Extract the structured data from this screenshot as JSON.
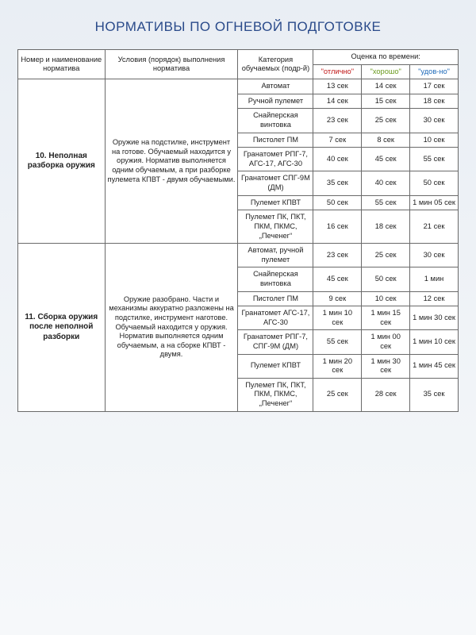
{
  "colors": {
    "title": "#2a4a8a",
    "border": "#6a6a6a",
    "text": "#222222",
    "bg_top": "#e9eef4",
    "bg_bottom": "#f6f8fa",
    "grade_otl": "#c01818",
    "grade_hor": "#6a9a1e",
    "grade_udov": "#1e6ab8"
  },
  "title": "НОРМАТИВЫ ПО ОГНЕВОЙ ПОДГОТОВКЕ",
  "headers": {
    "col_number": "Номер и наименование норматива",
    "col_cond": "Условия (порядок) выполнения норматива",
    "col_cat": "Категория обучаемых (подр-й)",
    "col_grade_group": "Оценка по времени:",
    "grade_otl": "\"отлично\"",
    "grade_hor": "\"хорошо\"",
    "grade_udov": "\"удов-но\""
  },
  "sections": [
    {
      "name": "10. Неполная разборка оружия",
      "cond": "Оружие на подстилке, инструмент на готове. Обучаемый находится у оружия. Норматив выполняется одним обучаемым, а при разборке пулемета КПВТ - двумя обучаемыми.",
      "rows": [
        {
          "cat": "Автомат",
          "otl": "13 сек",
          "hor": "14 сек",
          "udov": "17 сек"
        },
        {
          "cat": "Ручной пулемет",
          "otl": "14 сек",
          "hor": "15 сек",
          "udov": "18 сек"
        },
        {
          "cat": "Снайперская винтовка",
          "otl": "23 сек",
          "hor": "25 сек",
          "udov": "30 сек"
        },
        {
          "cat": "Пистолет ПМ",
          "otl": "7 сек",
          "hor": "8 сек",
          "udov": "10 сек"
        },
        {
          "cat": "Гранатомет РПГ-7, АГС-17, АГС-30",
          "otl": "40 сек",
          "hor": "45 сек",
          "udov": "55 сек"
        },
        {
          "cat": "Гранатомет СПГ-9М (ДМ)",
          "otl": "35 сек",
          "hor": "40 сек",
          "udov": "50 сек"
        },
        {
          "cat": "Пулемет КПВТ",
          "otl": "50 сек",
          "hor": "55 сек",
          "udov": "1 мин 05 сек"
        },
        {
          "cat": "Пулемет ПК, ПКТ, ПКМ, ПКМС, „Печенег“",
          "otl": "16 сек",
          "hor": "18 сек",
          "udov": "21 сек"
        }
      ]
    },
    {
      "name": "11. Сборка оружия после неполной разборки",
      "cond": "Оружие разобрано. Части и механизмы аккуратно разложены на подстилке, инструмент наготове. Обучаемый находится у оружия. Норматив выполняется одним обучаемым, а на сборке КПВТ - двумя.",
      "rows": [
        {
          "cat": "Автомат, ручной пулемет",
          "otl": "23 сек",
          "hor": "25 сек",
          "udov": "30 сек"
        },
        {
          "cat": "Снайперская винтовка",
          "otl": "45 сек",
          "hor": "50 сек",
          "udov": "1 мин"
        },
        {
          "cat": "Пистолет ПМ",
          "otl": "9 сек",
          "hor": "10 сек",
          "udov": "12 сек"
        },
        {
          "cat": "Гранатомет АГС-17, АГС-30",
          "otl": "1 мин 10 сек",
          "hor": "1 мин 15 сек",
          "udov": "1 мин 30 сек"
        },
        {
          "cat": "Гранатомет РПГ-7, СПГ-9М (ДМ)",
          "otl": "55 сек",
          "hor": "1 мин 00 сек",
          "udov": "1 мин 10 сек"
        },
        {
          "cat": "Пулемет КПВТ",
          "otl": "1 мин 20 сек",
          "hor": "1 мин 30 сек",
          "udov": "1 мин 45 сек"
        },
        {
          "cat": "Пулемет ПК, ПКТ, ПКМ, ПКМС, „Печенег“",
          "otl": "25 сек",
          "hor": "28 сек",
          "udov": "35 сек"
        }
      ]
    }
  ]
}
